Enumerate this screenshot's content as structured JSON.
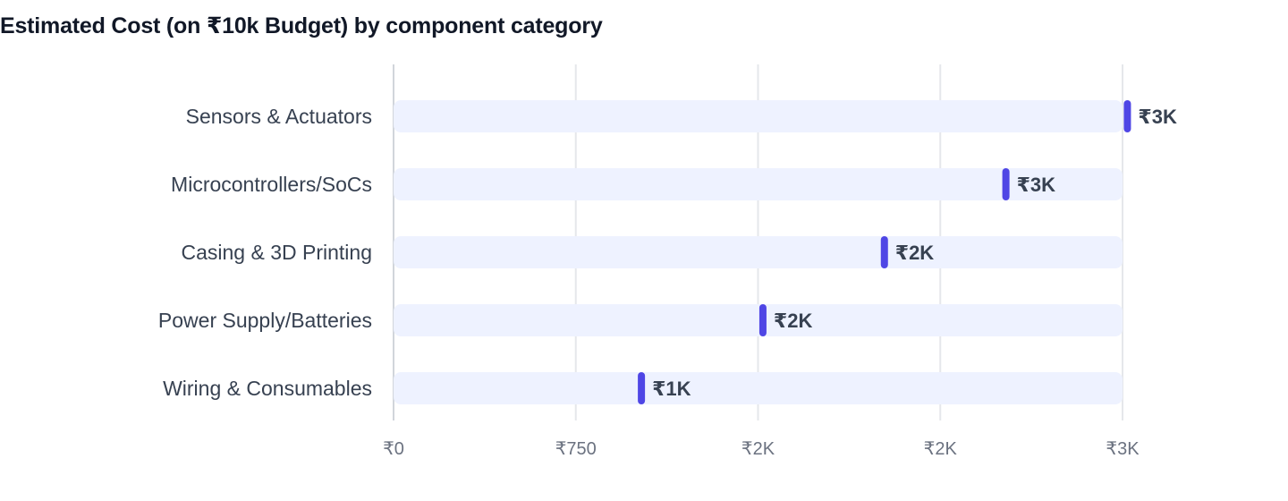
{
  "chart_data": {
    "type": "bar",
    "orientation": "horizontal",
    "style": "dot-marker-on-track",
    "title": "Estimated Cost (on ₹10k Budget) by component category",
    "xlabel": "",
    "ylabel": "",
    "categories": [
      "Sensors & Actuators",
      "Microcontrollers/SoCs",
      "Casing & 3D Printing",
      "Power Supply/Batteries",
      "Wiring & Consumables"
    ],
    "values": [
      3020,
      2520,
      2020,
      1520,
      1020
    ],
    "data_labels": [
      "₹3K",
      "₹3K",
      "₹2K",
      "₹2K",
      "₹1K"
    ],
    "xlim": [
      0,
      3000
    ],
    "x_ticks": [
      {
        "value": 0,
        "label": "₹0"
      },
      {
        "value": 750,
        "label": "₹750"
      },
      {
        "value": 1500,
        "label": "₹2K"
      },
      {
        "value": 2250,
        "label": "₹2K"
      },
      {
        "value": 3000,
        "label": "₹3K"
      }
    ],
    "grid": true,
    "legend": "none",
    "colors": {
      "marker": "#4f46e5",
      "track": "#eef2ff",
      "grid": "#e5e7eb",
      "title": "#111827",
      "label": "#374151",
      "tick": "#6b7280"
    }
  }
}
